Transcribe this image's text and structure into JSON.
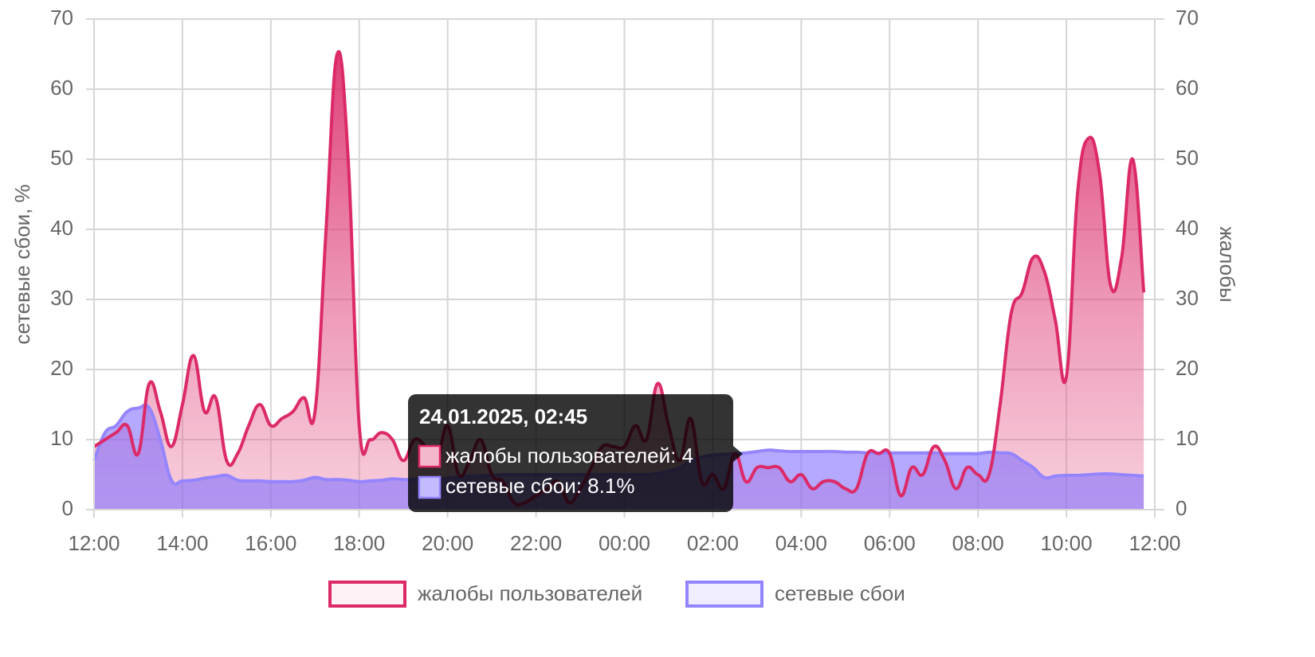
{
  "chart_data": {
    "type": "line",
    "y_label": "сетевые сбои, %",
    "y2_label": "жалобы",
    "x": [
      0,
      0.25,
      0.5,
      0.75,
      1,
      1.25,
      1.5,
      1.75,
      2,
      2.25,
      2.5,
      2.75,
      3,
      3.25,
      3.5,
      3.75,
      4,
      4.25,
      4.5,
      4.75,
      5,
      5.25,
      5.5,
      5.75,
      6,
      6.25,
      6.5,
      6.75,
      7,
      7.25,
      7.5,
      7.75,
      8,
      8.25,
      8.5,
      8.75,
      9,
      9.25,
      9.5,
      9.75,
      10,
      10.25,
      10.5,
      10.75,
      11,
      11.25,
      11.5,
      11.75,
      12,
      12.25,
      12.5,
      12.75,
      13,
      13.25,
      13.5,
      13.75,
      14,
      14.25,
      14.5,
      14.75,
      15,
      15.25,
      15.5,
      15.75,
      16,
      16.25,
      16.5,
      16.75,
      17,
      17.25,
      17.5,
      17.75,
      18,
      18.25,
      18.5,
      18.75,
      19,
      19.25,
      19.5,
      19.75,
      20,
      20.25,
      20.5,
      20.75,
      21,
      21.25,
      21.5,
      21.75,
      22,
      22.25,
      22.5,
      22.75,
      23,
      23.25,
      23.5,
      23.75
    ],
    "xlim": [
      0,
      24
    ],
    "xticks": [
      {
        "value": 0,
        "label": "12:00"
      },
      {
        "value": 2,
        "label": "14:00"
      },
      {
        "value": 4,
        "label": "16:00"
      },
      {
        "value": 6,
        "label": "18:00"
      },
      {
        "value": 8,
        "label": "20:00"
      },
      {
        "value": 10,
        "label": "22:00"
      },
      {
        "value": 12,
        "label": "00:00"
      },
      {
        "value": 14,
        "label": "02:00"
      },
      {
        "value": 16,
        "label": "04:00"
      },
      {
        "value": 18,
        "label": "06:00"
      },
      {
        "value": 20,
        "label": "08:00"
      },
      {
        "value": 22,
        "label": "10:00"
      },
      {
        "value": 24,
        "label": "12:00"
      }
    ],
    "ylim": [
      0,
      70
    ],
    "yticks": [
      0,
      10,
      20,
      30,
      40,
      50,
      60,
      70
    ],
    "y2lim": [
      0,
      70
    ],
    "y2ticks": [
      0,
      10,
      20,
      30,
      40,
      50,
      60,
      70
    ],
    "grid": true,
    "legend": "bottom",
    "series": [
      {
        "name": "жалобы пользователей",
        "color": "#dc2a68",
        "axis": "y2",
        "values": [
          9,
          10,
          11,
          12,
          8,
          18,
          14,
          9,
          15,
          22,
          14,
          16,
          7,
          8,
          12,
          15,
          12,
          13,
          14,
          16,
          14,
          40,
          65,
          50,
          12,
          10,
          11,
          10,
          7,
          10,
          9,
          7,
          12,
          5,
          7,
          10,
          5,
          4,
          1,
          1,
          2,
          3,
          4,
          1,
          3,
          6,
          9,
          9,
          9,
          12,
          10,
          18,
          12,
          7,
          13,
          4,
          5,
          3,
          8,
          4,
          6,
          6,
          6,
          4,
          5,
          3,
          4,
          4,
          3,
          3,
          8,
          8,
          8,
          2,
          6,
          5,
          9,
          7,
          3,
          6,
          5,
          5,
          15,
          28,
          31,
          36,
          34,
          27,
          19,
          45,
          53,
          48,
          32,
          36,
          50,
          31
        ]
      },
      {
        "name": "сетевые сбои",
        "color": "#9485ff",
        "values": [
          7,
          11,
          12,
          14,
          14.5,
          14.5,
          10,
          4.2,
          4.1,
          4.2,
          4.5,
          4.7,
          4.9,
          4.2,
          4.1,
          4.1,
          4,
          4,
          4,
          4.2,
          4.6,
          4.3,
          4.3,
          4.2,
          4,
          4.1,
          4.2,
          4.4,
          4.3,
          4.3,
          4.4,
          4.4,
          4.5,
          4.6,
          4.8,
          4.8,
          4.9,
          5,
          5,
          5,
          5,
          5,
          5,
          5,
          5,
          5,
          5,
          5,
          5,
          5,
          5,
          5.2,
          5.5,
          6,
          7,
          7.5,
          7.8,
          7.9,
          8,
          8.1,
          8.3,
          8.5,
          8.4,
          8.3,
          8.3,
          8.3,
          8.3,
          8.3,
          8.2,
          8.2,
          8.1,
          8.1,
          8.1,
          8.1,
          8.1,
          8.1,
          8.1,
          8,
          8,
          8,
          8,
          8.2,
          8.1,
          8,
          7,
          6,
          4.6,
          4.8,
          4.9,
          4.9,
          5,
          5.1,
          5.1,
          5,
          4.9,
          4.8
        ]
      }
    ],
    "tooltip": {
      "title": "24.01.2025, 02:45",
      "lines": [
        "жалобы пользователей: 4",
        "сетевые сбои: 8.1%"
      ]
    }
  }
}
